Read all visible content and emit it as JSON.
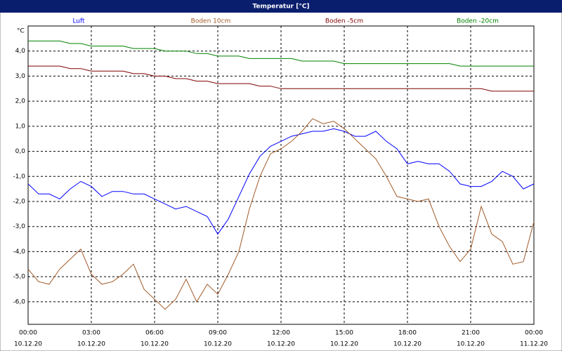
{
  "chart_data": {
    "type": "line",
    "title": "Temperatur [°C]",
    "y_label": "°C",
    "x": [
      0,
      0.5,
      1,
      1.5,
      2,
      2.5,
      3,
      3.5,
      4,
      4.5,
      5,
      5.5,
      6,
      6.5,
      7,
      7.5,
      8,
      8.5,
      9,
      9.5,
      10,
      10.5,
      11,
      11.5,
      12,
      12.5,
      13,
      13.5,
      14,
      14.5,
      15,
      15.5,
      16,
      16.5,
      17,
      17.5,
      18,
      18.5,
      19,
      19.5,
      20,
      20.5,
      21,
      21.5,
      22,
      22.5,
      23,
      23.5,
      24
    ],
    "series": [
      {
        "name": "Luft",
        "color": "#0000ff",
        "values": [
          -1.3,
          -1.7,
          -1.7,
          -1.9,
          -1.5,
          -1.2,
          -1.4,
          -1.8,
          -1.6,
          -1.6,
          -1.7,
          -1.7,
          -1.9,
          -2.1,
          -2.3,
          -2.2,
          -2.4,
          -2.6,
          -3.3,
          -2.7,
          -1.8,
          -0.9,
          -0.2,
          0.2,
          0.4,
          0.6,
          0.7,
          0.8,
          0.8,
          0.9,
          0.8,
          0.6,
          0.6,
          0.8,
          0.4,
          0.1,
          -0.5,
          -0.4,
          -0.5,
          -0.5,
          -0.8,
          -1.3,
          -1.4,
          -1.4,
          -1.2,
          -0.8,
          -1.0,
          -1.5,
          -1.3
        ]
      },
      {
        "name": "Boden 10cm",
        "color": "#a05a28",
        "values": [
          -4.7,
          -5.2,
          -5.3,
          -4.7,
          -4.3,
          -3.9,
          -4.9,
          -5.3,
          -5.2,
          -4.9,
          -4.5,
          -5.5,
          -5.9,
          -6.3,
          -5.9,
          -5.1,
          -6.0,
          -5.3,
          -5.7,
          -4.9,
          -4.0,
          -2.3,
          -1.0,
          -0.1,
          0.1,
          0.4,
          0.8,
          1.3,
          1.1,
          1.2,
          0.9,
          0.5,
          0.1,
          -0.3,
          -1.0,
          -1.8,
          -1.9,
          -2.0,
          -1.9,
          -3.0,
          -3.8,
          -4.4,
          -3.9,
          -2.2,
          -3.3,
          -3.6,
          -4.5,
          -4.4,
          -2.8
        ]
      },
      {
        "name": "Boden -5cm",
        "color": "#800000",
        "values": [
          3.4,
          3.4,
          3.4,
          3.4,
          3.3,
          3.3,
          3.2,
          3.2,
          3.2,
          3.2,
          3.1,
          3.1,
          3.0,
          3.0,
          2.9,
          2.9,
          2.8,
          2.8,
          2.7,
          2.7,
          2.7,
          2.7,
          2.6,
          2.6,
          2.5,
          2.5,
          2.5,
          2.5,
          2.5,
          2.5,
          2.5,
          2.5,
          2.5,
          2.5,
          2.5,
          2.5,
          2.5,
          2.5,
          2.5,
          2.5,
          2.5,
          2.5,
          2.5,
          2.5,
          2.4,
          2.4,
          2.4,
          2.4,
          2.4
        ]
      },
      {
        "name": "Boden -20cm",
        "color": "#008000",
        "values": [
          4.4,
          4.4,
          4.4,
          4.4,
          4.3,
          4.3,
          4.2,
          4.2,
          4.2,
          4.2,
          4.1,
          4.1,
          4.1,
          4.0,
          4.0,
          4.0,
          3.9,
          3.9,
          3.8,
          3.8,
          3.8,
          3.7,
          3.7,
          3.7,
          3.7,
          3.7,
          3.6,
          3.6,
          3.6,
          3.6,
          3.5,
          3.5,
          3.5,
          3.5,
          3.5,
          3.5,
          3.5,
          3.5,
          3.5,
          3.5,
          3.5,
          3.4,
          3.4,
          3.4,
          3.4,
          3.4,
          3.4,
          3.4,
          3.4
        ]
      }
    ],
    "xlim": [
      0,
      24
    ],
    "xticks": [
      {
        "value": 0,
        "label": "00:00",
        "date": "10.12.20"
      },
      {
        "value": 3,
        "label": "03:00",
        "date": "10.12.20"
      },
      {
        "value": 6,
        "label": "06:00",
        "date": "10.12.20"
      },
      {
        "value": 9,
        "label": "09:00",
        "date": "10.12.20"
      },
      {
        "value": 12,
        "label": "12:00",
        "date": "10.12.20"
      },
      {
        "value": 15,
        "label": "15:00",
        "date": "10.12.20"
      },
      {
        "value": 18,
        "label": "18:00",
        "date": "10.12.20"
      },
      {
        "value": 21,
        "label": "21:00",
        "date": "10.12.20"
      },
      {
        "value": 24,
        "label": "00:00",
        "date": "11.12.20"
      }
    ],
    "ylim": [
      -6.9,
      5.0
    ],
    "yticks": [
      {
        "value": 4,
        "label": "4,0"
      },
      {
        "value": 3,
        "label": "3,0"
      },
      {
        "value": 2,
        "label": "2,0"
      },
      {
        "value": 1,
        "label": "1,0"
      },
      {
        "value": 0,
        "label": "0,0"
      },
      {
        "value": -1,
        "label": "-1,0"
      },
      {
        "value": -2,
        "label": "-2,0"
      },
      {
        "value": -3,
        "label": "-3,0"
      },
      {
        "value": -4,
        "label": "-4,0"
      },
      {
        "value": -5,
        "label": "-5,0"
      },
      {
        "value": -6,
        "label": "-6,0"
      }
    ],
    "grid": true
  }
}
